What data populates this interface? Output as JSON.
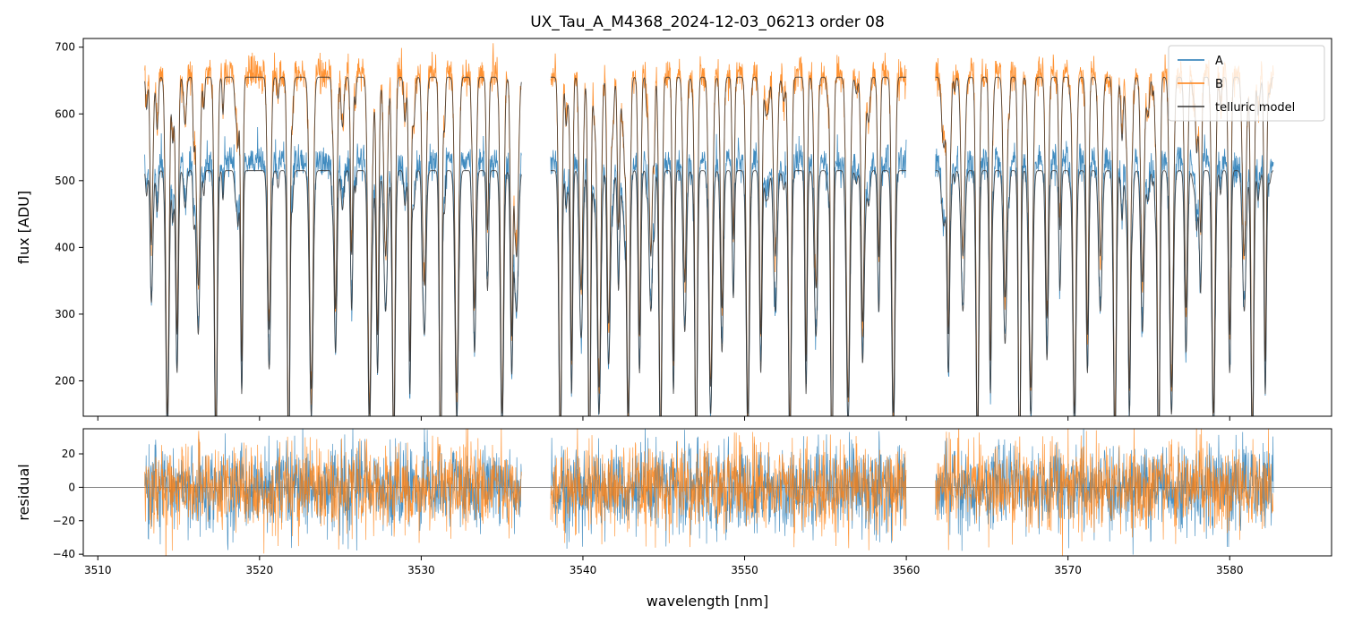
{
  "chart_data": {
    "type": "line",
    "title": "UX_Tau_A_M4368_2024-12-03_06213  order 08",
    "xlabel": "wavelength [nm]",
    "colors": {
      "A": "#1f77b4",
      "B": "#ff7f0e",
      "telluric": "#333333"
    },
    "x_ticks": [
      3510,
      3520,
      3530,
      3540,
      3550,
      3560,
      3570,
      3580
    ],
    "x_tick_labels": [
      "3510",
      "3520",
      "3530",
      "3540",
      "3550",
      "3560",
      "3570",
      "3580"
    ],
    "xlim": [
      3509.1,
      3586.3
    ],
    "data_gaps": [
      [
        3536.2,
        3538.0
      ],
      [
        3560.0,
        3561.8
      ]
    ],
    "top_panel": {
      "ylabel": "flux [ADU]",
      "ylim": [
        147,
        713
      ],
      "y_ticks": [
        200,
        300,
        400,
        500,
        600,
        700
      ],
      "y_tick_labels": [
        "200",
        "300",
        "400",
        "500",
        "600",
        "700"
      ],
      "legend_position": "top-right",
      "series": [
        {
          "name": "A",
          "continuum_level": 530
        },
        {
          "name": "B",
          "continuum_level": 660
        },
        {
          "name": "telluric model",
          "continuum_levels": [
            515,
            655
          ]
        }
      ]
    },
    "bottom_panel": {
      "ylabel": "residual",
      "ylim": [
        -41,
        35
      ],
      "y_ticks": [
        -40,
        -20,
        0,
        20
      ],
      "y_tick_labels": [
        "−40",
        "−20",
        "0",
        "20"
      ],
      "zero_line": 0,
      "residual_amplitude": 13
    },
    "x_range_data": [
      3512.9,
      3582.7
    ]
  }
}
